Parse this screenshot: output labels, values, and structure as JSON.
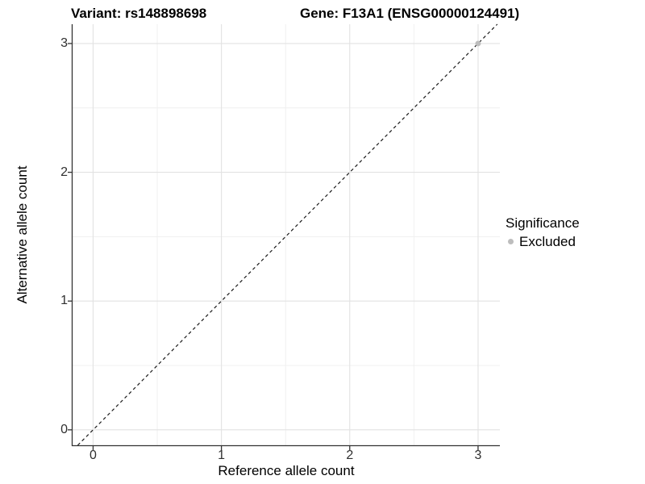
{
  "figure": {
    "title_variant": "Variant: rs148898698",
    "title_gene": "Gene: F13A1 (ENSG00000124491)"
  },
  "axes": {
    "x": {
      "label": "Reference allele count",
      "tick_labels": [
        "0",
        "1",
        "2",
        "3"
      ]
    },
    "y": {
      "label": "Alternative allele count",
      "tick_labels": [
        "0",
        "1",
        "2",
        "3"
      ]
    }
  },
  "legend": {
    "title": "Significance",
    "items": [
      {
        "label": "Excluded",
        "color": "#bdbdbd",
        "marker": "circle-icon"
      }
    ]
  },
  "colors": {
    "background": "#ffffff",
    "grid_major": "#e2e2e2",
    "grid_minor": "#efefef",
    "axis_line": "#333333",
    "tick_text": "#303030",
    "reference_line": "#1a1a1a",
    "excluded_point": "#bdbdbd"
  },
  "chart_data": {
    "type": "scatter",
    "title": "Variant: rs148898698 | Gene: F13A1 (ENSG00000124491)",
    "xlabel": "Reference allele count",
    "ylabel": "Alternative allele count",
    "xlim": [
      -0.16,
      3.17
    ],
    "ylim": [
      -0.12,
      3.15
    ],
    "x_ticks": [
      0,
      1,
      2,
      3
    ],
    "y_ticks": [
      0,
      1,
      2,
      3
    ],
    "x_minor_ticks": [
      0.5,
      1.5,
      2.5
    ],
    "y_minor_ticks": [
      0.5,
      1.5,
      2.5
    ],
    "grid": "major+minor",
    "legend_position": "right",
    "legend_title": "Significance",
    "series": [
      {
        "name": "Excluded",
        "color": "#bdbdbd",
        "points": [
          {
            "x": 3,
            "y": 3
          }
        ]
      }
    ],
    "reference_line": {
      "name": "identity (y = x)",
      "style": "dashed",
      "color": "#1a1a1a",
      "from": [
        -0.12,
        -0.12
      ],
      "to": [
        3.15,
        3.15
      ]
    }
  }
}
